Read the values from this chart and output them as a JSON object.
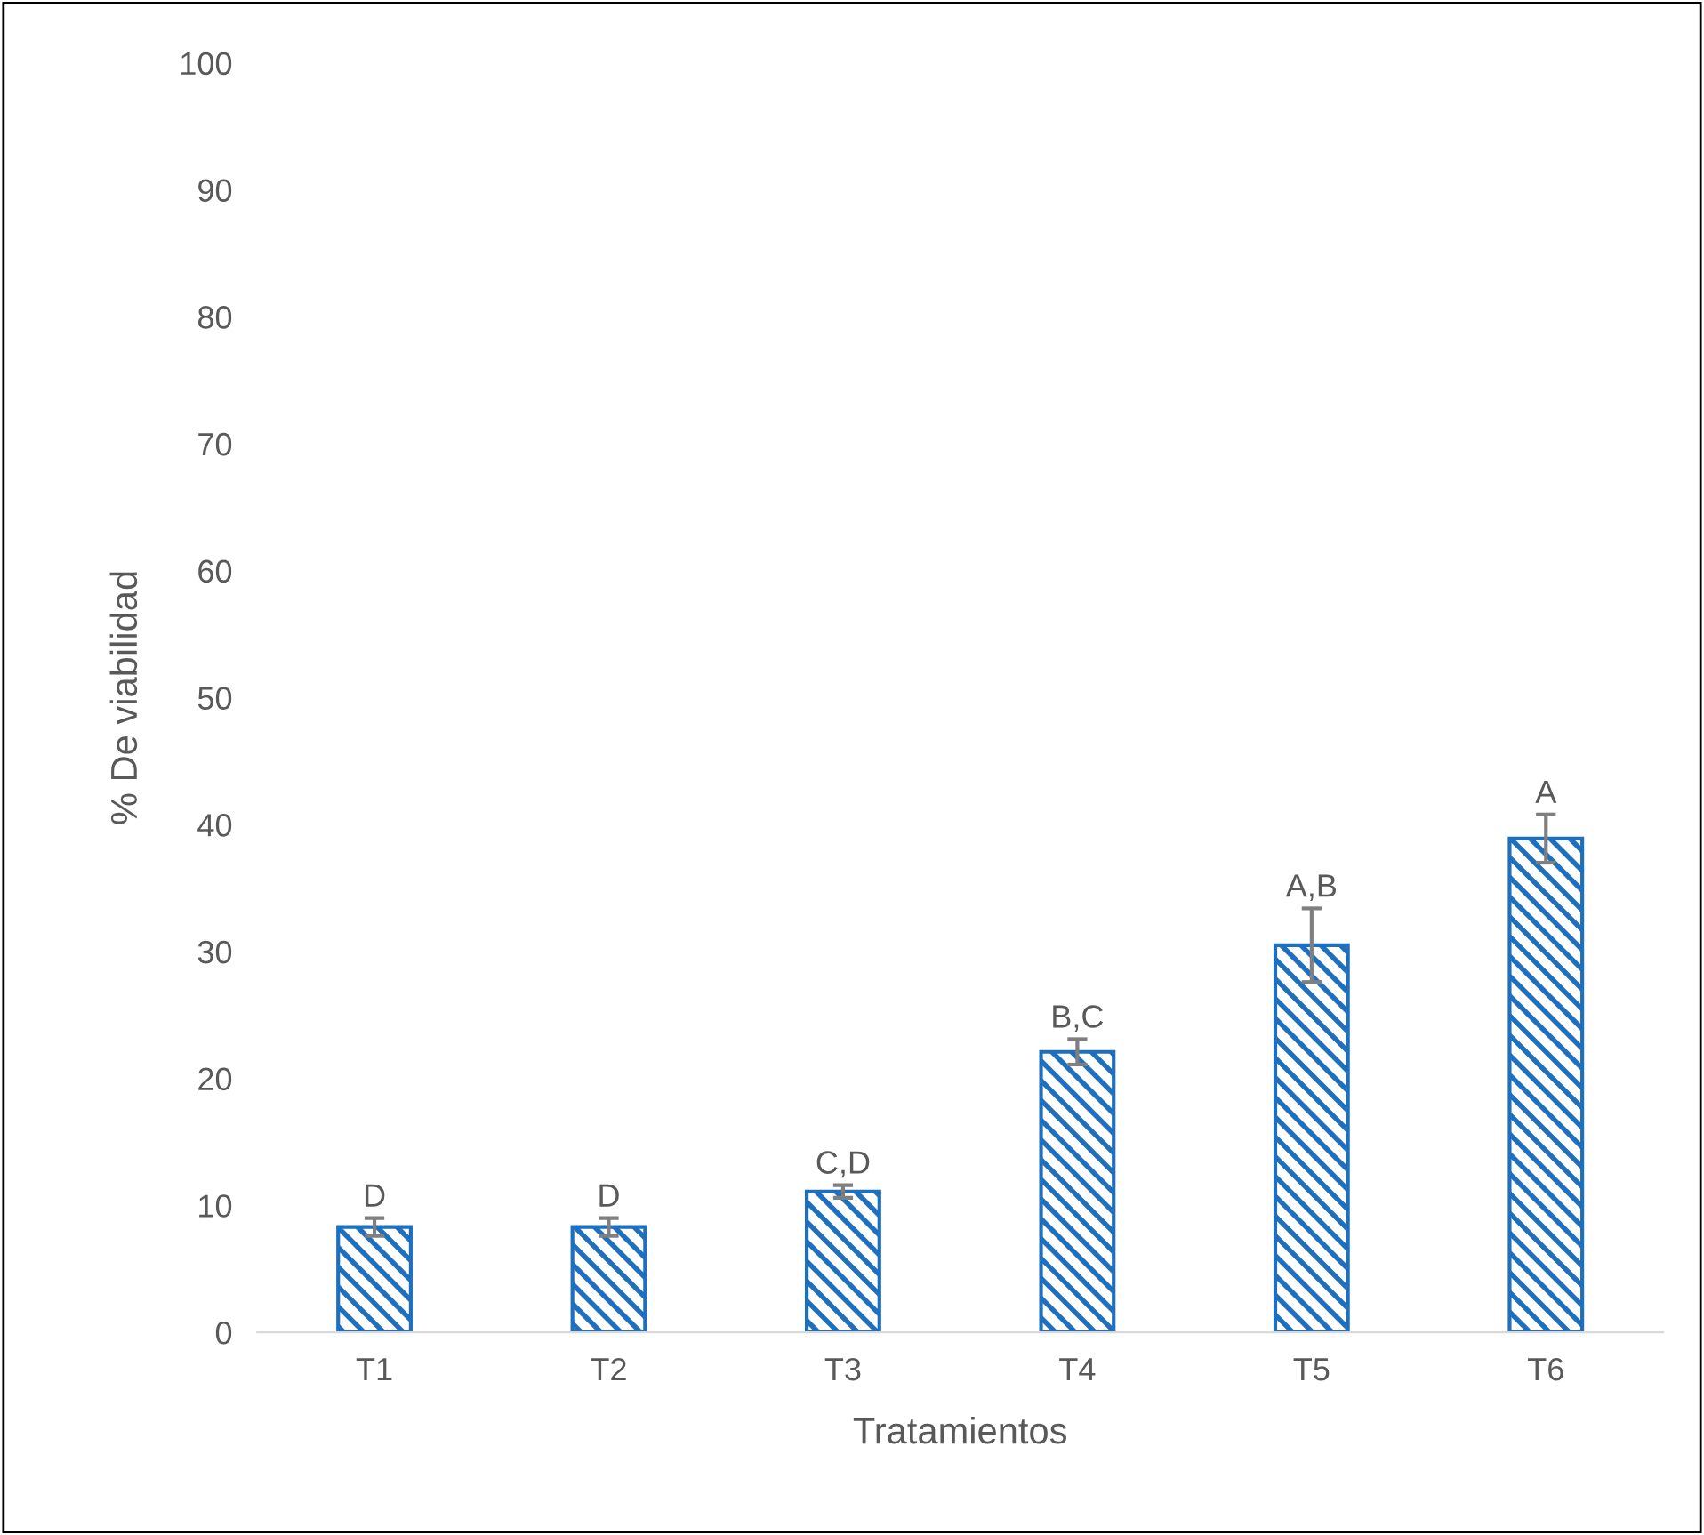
{
  "chart_data": {
    "type": "bar",
    "xlabel": "Tratamientos",
    "ylabel": "% De viabilidad",
    "categories": [
      "T1",
      "T2",
      "T3",
      "T4",
      "T5",
      "T6"
    ],
    "values": [
      8.3,
      8.3,
      11.1,
      22.1,
      30.5,
      38.9
    ],
    "errors": [
      0.7,
      0.7,
      0.5,
      1.0,
      2.9,
      1.9
    ],
    "color": "#1f6fbf",
    "ylim": [
      0,
      100
    ],
    "yticks": [
      0,
      10,
      20,
      30,
      40,
      50,
      60,
      70,
      80,
      90,
      100
    ],
    "annotations": [
      {
        "text": "D",
        "x": "T1",
        "y": 9.0
      },
      {
        "text": "D",
        "x": "T2",
        "y": 9.0
      },
      {
        "text": "C,D",
        "x": "T3",
        "y": 11.6
      },
      {
        "text": "B,C",
        "x": "T4",
        "y": 23.1
      },
      {
        "text": "A,B",
        "x": "T5",
        "y": 33.4
      },
      {
        "text": "A",
        "x": "T6",
        "y": 40.8
      }
    ]
  }
}
